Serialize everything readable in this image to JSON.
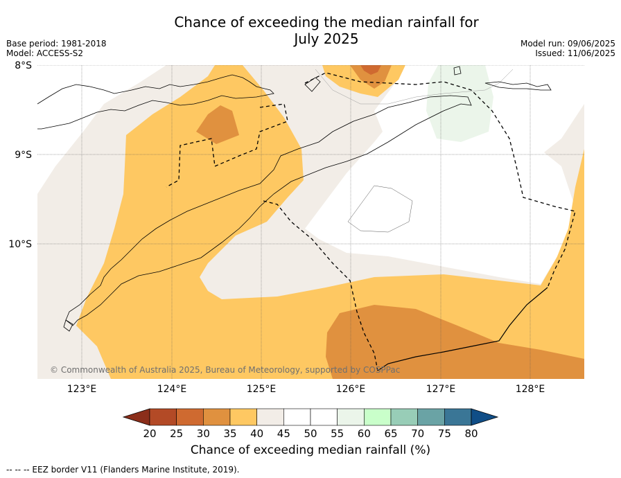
{
  "title_line1": "Chance of exceeding the median rainfall for",
  "title_line2": "July 2025",
  "base_period": "Base period: 1981-2018",
  "model": "Model: ACCESS-S2",
  "model_run": "Model run: 09/06/2025",
  "issued": "Issued: 11/06/2025",
  "copyright": "© Commonwealth of Australia 2025, Bureau of Meteorology, supported by COSPPac",
  "lat_labels": [
    "8°S",
    "9°S",
    "10°S"
  ],
  "lon_labels": [
    "123°E",
    "124°E",
    "125°E",
    "126°E",
    "127°E",
    "128°E"
  ],
  "colorbar": {
    "title": "Chance of exceeding median rainfall (%)",
    "ticks": [
      "20",
      "25",
      "30",
      "35",
      "40",
      "45",
      "50",
      "55",
      "60",
      "65",
      "70",
      "75",
      "80"
    ],
    "colors": [
      "#8b2e1a",
      "#b34a26",
      "#cf6a30",
      "#e0913f",
      "#fec862",
      "#f2ede7",
      "#ffffff",
      "#ffffff",
      "#ebf5ea",
      "#c9ffca",
      "#98cdb7",
      "#6aa3a5",
      "#3a7696",
      "#104e87"
    ]
  },
  "legend_note": "--  --  -- EEZ border V11 (Flanders Marine Institute, 2019)."
}
